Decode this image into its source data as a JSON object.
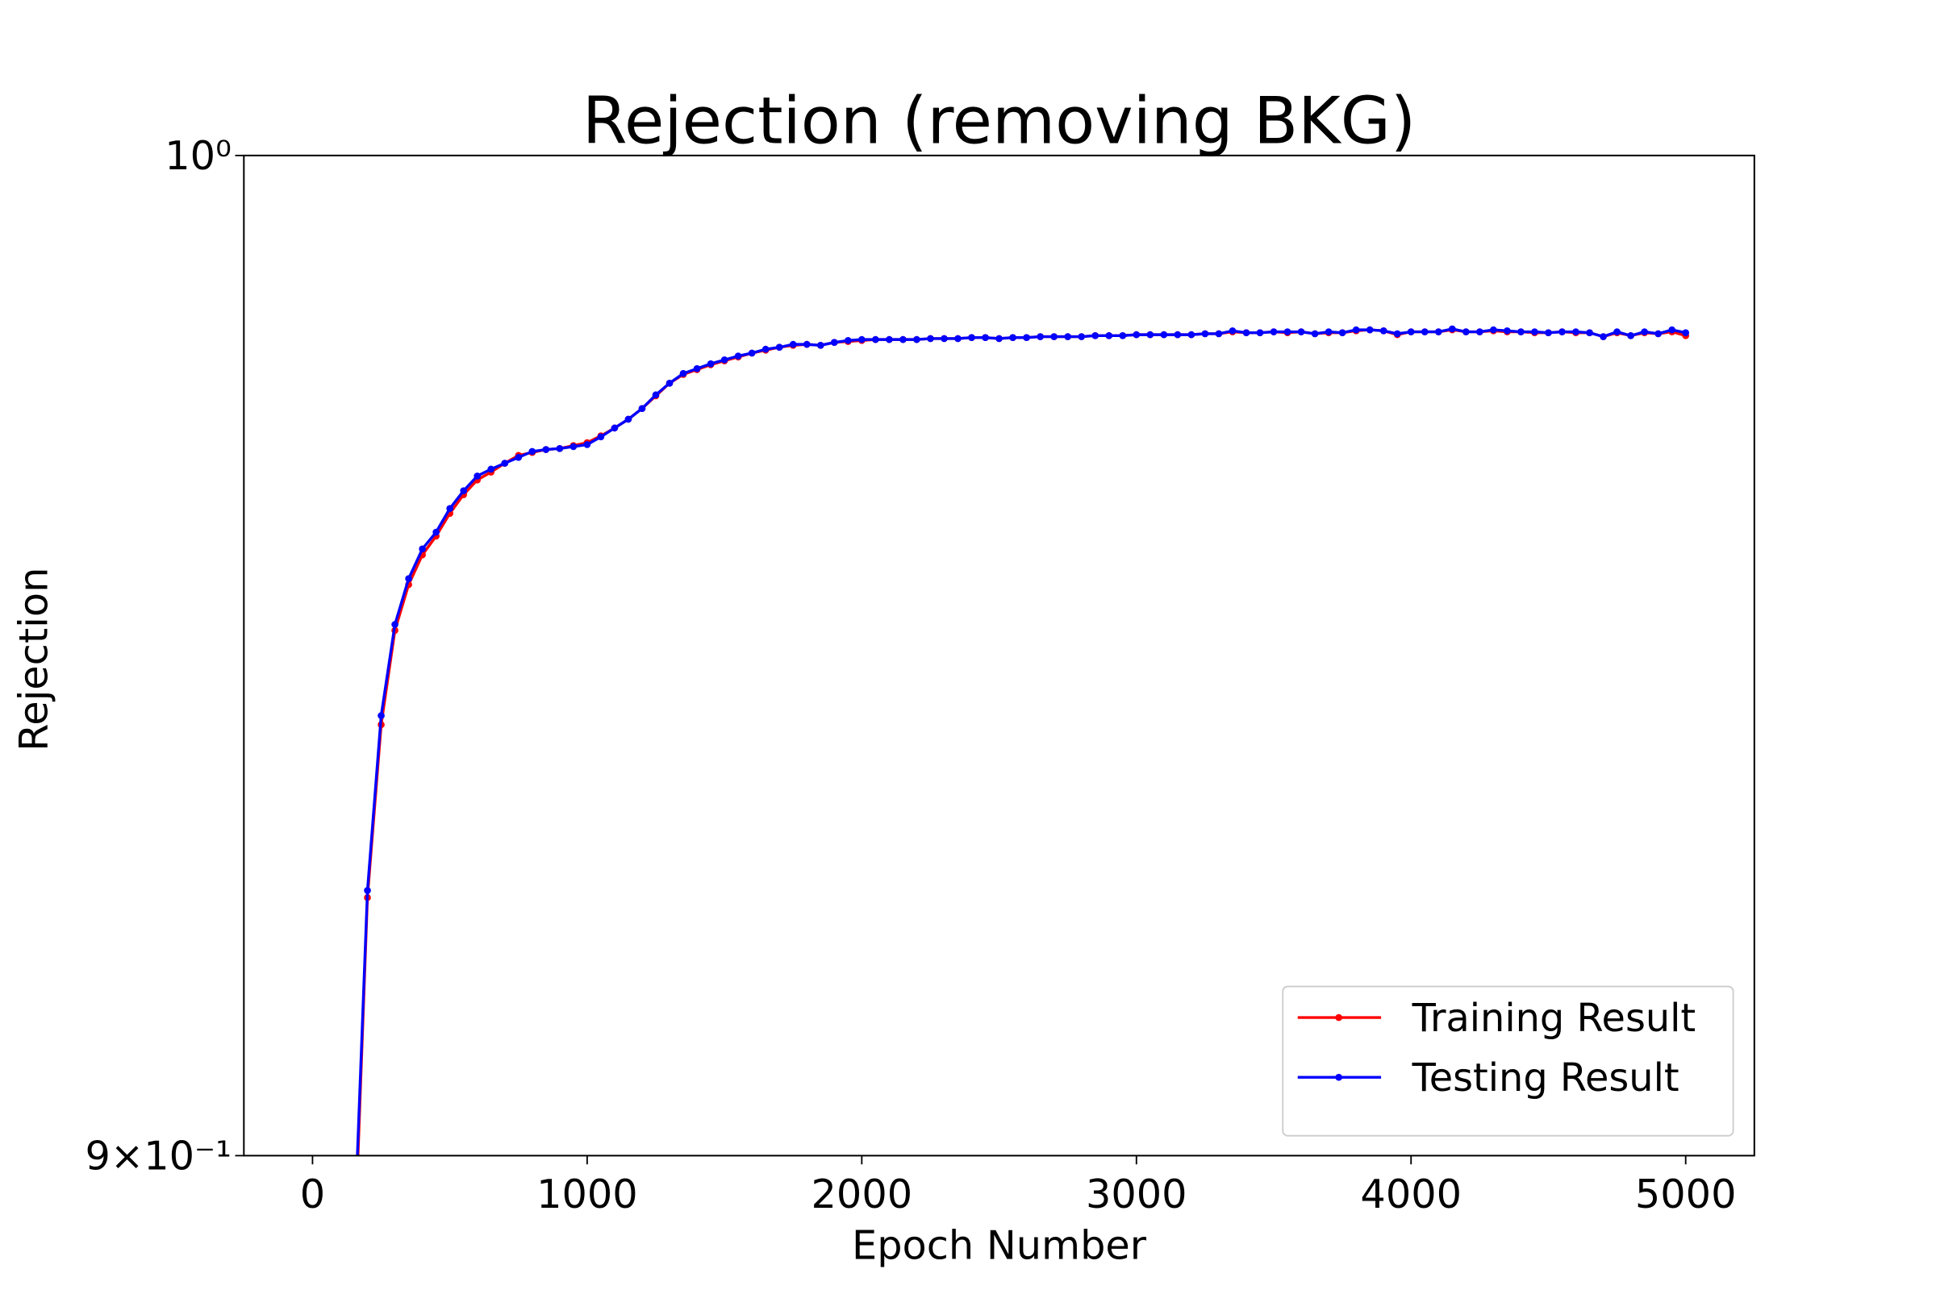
{
  "chart_data": {
    "type": "line",
    "title": "Rejection (removing BKG)",
    "x_label": "Epoch Number",
    "y_label": "Rejection",
    "log_y": true,
    "legend": "lower right",
    "xlim": [
      -250,
      5250
    ],
    "xticks": [
      0,
      1000,
      2000,
      3000,
      4000,
      5000
    ],
    "ylim": [
      0.9,
      1.0
    ],
    "yticks": [
      {
        "value": 0.9,
        "label": "9×10⁻¹"
      },
      {
        "value": 1.0,
        "label": "10⁰"
      }
    ],
    "x": [
      150,
      200,
      250,
      300,
      350,
      400,
      450,
      500,
      550,
      600,
      650,
      700,
      750,
      800,
      850,
      900,
      950,
      1000,
      1050,
      1100,
      1150,
      1200,
      1250,
      1300,
      1350,
      1400,
      1450,
      1500,
      1550,
      1600,
      1650,
      1700,
      1750,
      1800,
      1850,
      1900,
      1950,
      2000,
      2050,
      2100,
      2150,
      2200,
      2250,
      2300,
      2350,
      2400,
      2450,
      2500,
      2550,
      2600,
      2650,
      2700,
      2750,
      2800,
      2850,
      2900,
      2950,
      3000,
      3050,
      3100,
      3150,
      3200,
      3250,
      3300,
      3350,
      3400,
      3450,
      3500,
      3550,
      3600,
      3650,
      3700,
      3750,
      3800,
      3850,
      3900,
      3950,
      4000,
      4050,
      4100,
      4150,
      4200,
      4250,
      4300,
      4350,
      4400,
      4450,
      4500,
      4550,
      4600,
      4650,
      4700,
      4750,
      4800,
      4850,
      4900,
      4950,
      5000
    ],
    "series": [
      {
        "name": "Training Result",
        "color": "#ff0000",
        "values": [
          0.889,
          0.9248,
          0.9418,
          0.9512,
          0.9558,
          0.9588,
          0.9607,
          0.963,
          0.9649,
          0.9664,
          0.9672,
          0.9681,
          0.9689,
          0.9692,
          0.9695,
          0.9696,
          0.9699,
          0.9702,
          0.9709,
          0.9717,
          0.9726,
          0.9737,
          0.975,
          0.9763,
          0.9772,
          0.9777,
          0.9782,
          0.9786,
          0.979,
          0.9794,
          0.9797,
          0.98,
          0.9802,
          0.9803,
          0.9802,
          0.9805,
          0.9806,
          0.9807,
          0.9808,
          0.9808,
          0.9808,
          0.9808,
          0.9809,
          0.9809,
          0.9809,
          0.981,
          0.981,
          0.9809,
          0.981,
          0.981,
          0.9811,
          0.9811,
          0.9811,
          0.9811,
          0.9812,
          0.9812,
          0.9812,
          0.9813,
          0.9813,
          0.9813,
          0.9813,
          0.9813,
          0.9814,
          0.9814,
          0.9816,
          0.9815,
          0.9815,
          0.9816,
          0.9815,
          0.9816,
          0.9814,
          0.9815,
          0.9815,
          0.9817,
          0.9818,
          0.9817,
          0.9813,
          0.9816,
          0.9816,
          0.9816,
          0.9818,
          0.9816,
          0.9816,
          0.9817,
          0.9816,
          0.9816,
          0.9815,
          0.9815,
          0.9816,
          0.9815,
          0.9815,
          0.9811,
          0.9815,
          0.9812,
          0.9815,
          0.9814,
          0.9816,
          0.9812
        ]
      },
      {
        "name": "Testing Result",
        "color": "#0000ff",
        "values": [
          0.891,
          0.9255,
          0.9427,
          0.9518,
          0.9564,
          0.9594,
          0.9611,
          0.9635,
          0.9653,
          0.9668,
          0.9675,
          0.9681,
          0.9687,
          0.9693,
          0.9695,
          0.9696,
          0.9698,
          0.97,
          0.9708,
          0.9717,
          0.9726,
          0.9737,
          0.9751,
          0.9763,
          0.9773,
          0.9778,
          0.9783,
          0.9787,
          0.9791,
          0.9794,
          0.9798,
          0.98,
          0.9803,
          0.9803,
          0.9802,
          0.9805,
          0.9807,
          0.9808,
          0.9808,
          0.9808,
          0.9808,
          0.9808,
          0.9809,
          0.9809,
          0.9809,
          0.981,
          0.981,
          0.9809,
          0.981,
          0.981,
          0.9811,
          0.9811,
          0.9811,
          0.9811,
          0.9812,
          0.9812,
          0.9812,
          0.9813,
          0.9813,
          0.9813,
          0.9813,
          0.9813,
          0.9814,
          0.9814,
          0.9817,
          0.9815,
          0.9815,
          0.9816,
          0.9816,
          0.9816,
          0.9814,
          0.9816,
          0.9815,
          0.9818,
          0.9818,
          0.9817,
          0.9814,
          0.9816,
          0.9816,
          0.9816,
          0.9819,
          0.9816,
          0.9816,
          0.9818,
          0.9817,
          0.9816,
          0.9816,
          0.9815,
          0.9816,
          0.9816,
          0.9815,
          0.9811,
          0.9816,
          0.9812,
          0.9816,
          0.9814,
          0.9818,
          0.9815
        ]
      }
    ]
  }
}
